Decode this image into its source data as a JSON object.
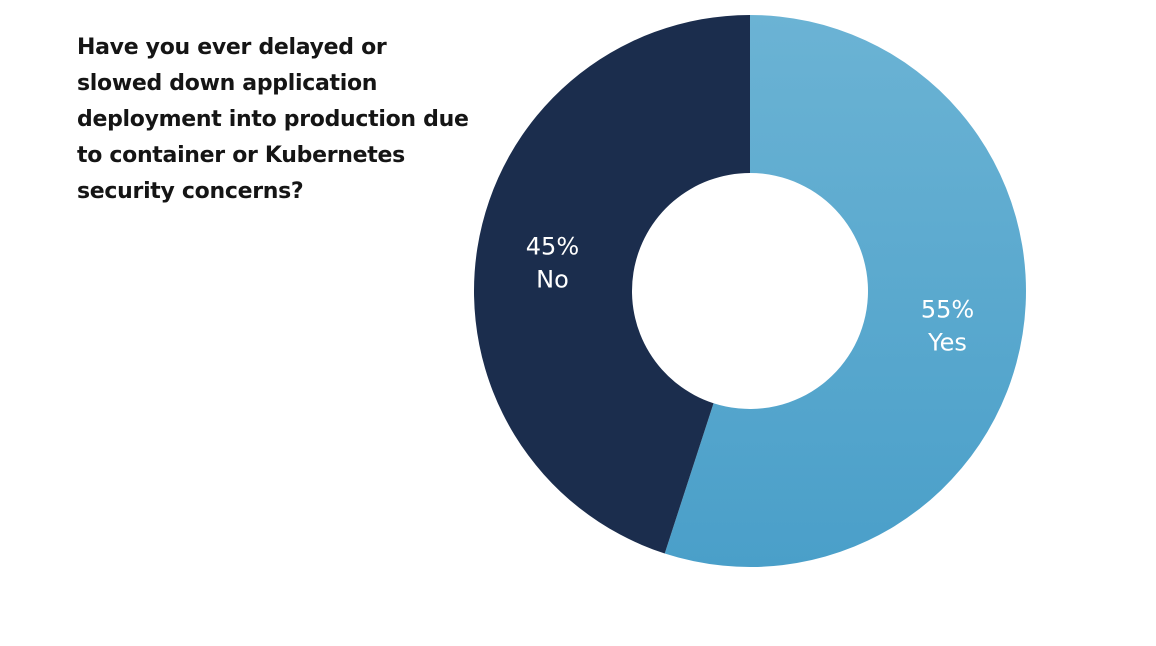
{
  "chart_data": {
    "type": "pie",
    "donut": true,
    "title": "Have you ever delayed or slowed down application deployment into production due to container or Kubernetes security concerns?",
    "slices": [
      {
        "label": "Yes",
        "value": 55,
        "value_text": "55%",
        "color": "#4a9fc9",
        "color_light": "#6bb3d4"
      },
      {
        "label": "No",
        "value": 45,
        "value_text": "45%",
        "color": "#1b2d4d"
      }
    ],
    "legend": "none",
    "grid": false
  }
}
